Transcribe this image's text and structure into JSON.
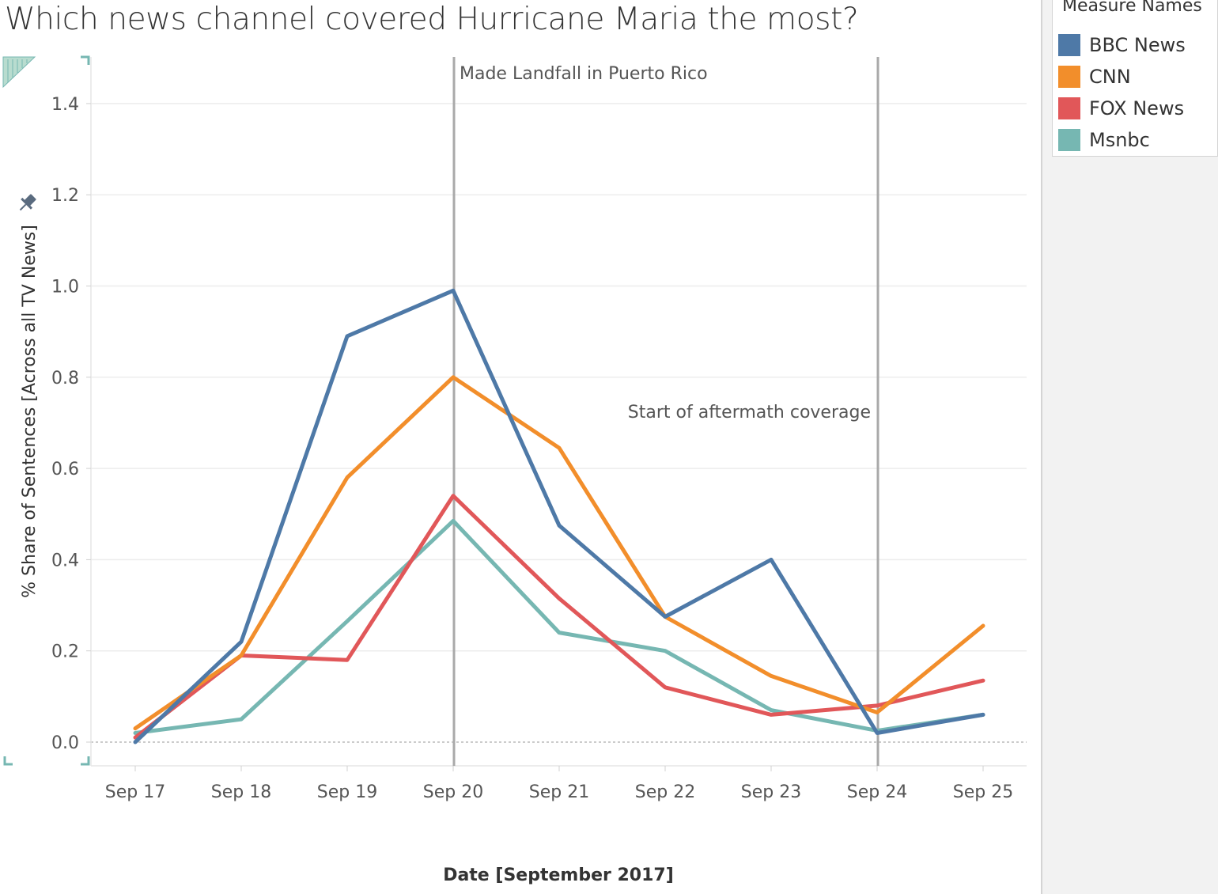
{
  "title": "Which news channel covered Hurricane Maria the most?",
  "legend": {
    "title": "Measure Names",
    "items": [
      {
        "label": "BBC News",
        "color": "#4e79a7"
      },
      {
        "label": "CNN",
        "color": "#f28e2b"
      },
      {
        "label": "FOX News",
        "color": "#e15759"
      },
      {
        "label": "Msnbc",
        "color": "#76b7b2"
      }
    ]
  },
  "icons": {
    "pin": "pin-icon",
    "corner": "corner-marker-icon"
  },
  "chart_data": {
    "type": "line",
    "xlabel": "Date [September 2017]",
    "ylabel": "% Share of Sentences [Across all TV News]",
    "categories": [
      "Sep 17",
      "Sep 18",
      "Sep 19",
      "Sep 20",
      "Sep 21",
      "Sep 22",
      "Sep 23",
      "Sep 24",
      "Sep 25"
    ],
    "ylim": [
      -0.05,
      1.5
    ],
    "yticks": [
      0.0,
      0.2,
      0.4,
      0.6,
      0.8,
      1.0,
      1.2,
      1.4
    ],
    "ytick_labels": [
      "0.0",
      "0.2",
      "0.4",
      "0.6",
      "0.8",
      "1.0",
      "1.2",
      "1.4"
    ],
    "grid": true,
    "legend_position": "top-right",
    "series": [
      {
        "name": "BBC News",
        "color": "#4e79a7",
        "values": [
          0.0,
          0.22,
          0.89,
          0.99,
          0.475,
          0.275,
          0.4,
          0.02,
          0.06
        ]
      },
      {
        "name": "CNN",
        "color": "#f28e2b",
        "values": [
          0.03,
          0.19,
          0.58,
          0.8,
          0.645,
          0.275,
          0.145,
          0.065,
          0.255
        ]
      },
      {
        "name": "FOX News",
        "color": "#e15759",
        "values": [
          0.01,
          0.19,
          0.18,
          0.54,
          0.315,
          0.12,
          0.06,
          0.08,
          0.135
        ]
      },
      {
        "name": "Msnbc",
        "color": "#76b7b2",
        "values": [
          0.02,
          0.05,
          0.265,
          0.485,
          0.24,
          0.2,
          0.07,
          0.025,
          0.06
        ]
      }
    ],
    "reference_lines": [
      {
        "x": "Sep 20",
        "label": "Made Landfall in Puerto Rico"
      },
      {
        "x": "Sep 24",
        "label": "Start of aftermath coverage"
      }
    ]
  }
}
